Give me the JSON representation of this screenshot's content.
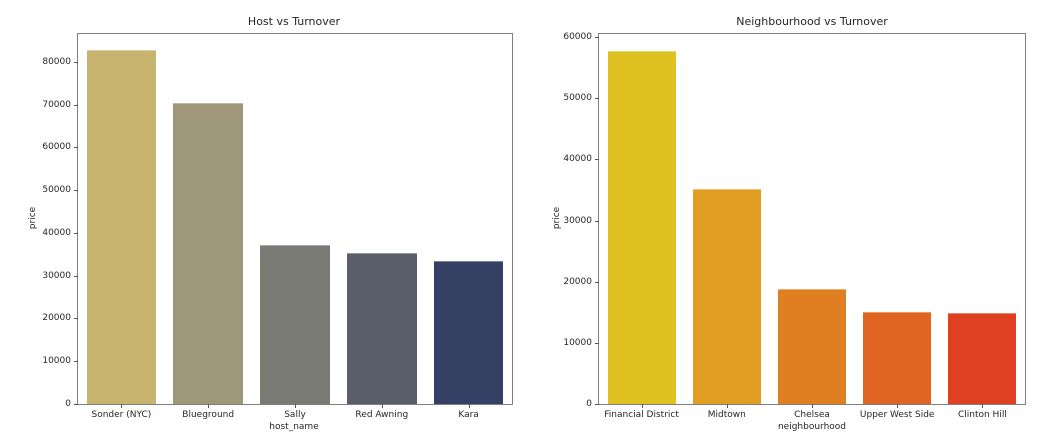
{
  "chart_data": [
    {
      "type": "bar",
      "title": "Host vs Turnover",
      "xlabel": "host_name",
      "ylabel": "price",
      "categories": [
        "Sonder (NYC)",
        "Blueground",
        "Sally",
        "Red Awning",
        "Kara"
      ],
      "values": [
        82700,
        70300,
        37100,
        35200,
        33500
      ],
      "colors": [
        "#c6b46f",
        "#9f977a",
        "#7a7a74",
        "#595e6a",
        "#344164"
      ],
      "ylim": [
        0,
        86500
      ],
      "yticks": [
        0,
        10000,
        20000,
        30000,
        40000,
        50000,
        60000,
        70000,
        80000
      ],
      "ytick_labels": [
        "0",
        "10000",
        "20000",
        "30000",
        "40000",
        "50000",
        "60000",
        "70000",
        "80000"
      ],
      "grid": false,
      "legend": null
    },
    {
      "type": "bar",
      "title": "Neighbourhood vs Turnover",
      "xlabel": "neighbourhood",
      "ylabel": "price",
      "categories": [
        "Financial District",
        "Midtown",
        "Chelsea",
        "Upper West Side",
        "Clinton Hill"
      ],
      "values": [
        57700,
        35200,
        18800,
        15000,
        14850
      ],
      "colors": [
        "#e0c122",
        "#e09e22",
        "#e07f22",
        "#e06422",
        "#e04022"
      ],
      "ylim": [
        0,
        60500
      ],
      "yticks": [
        0,
        10000,
        20000,
        30000,
        40000,
        50000,
        60000
      ],
      "ytick_labels": [
        "0",
        "10000",
        "20000",
        "30000",
        "40000",
        "50000",
        "60000"
      ],
      "grid": false,
      "legend": null
    }
  ]
}
